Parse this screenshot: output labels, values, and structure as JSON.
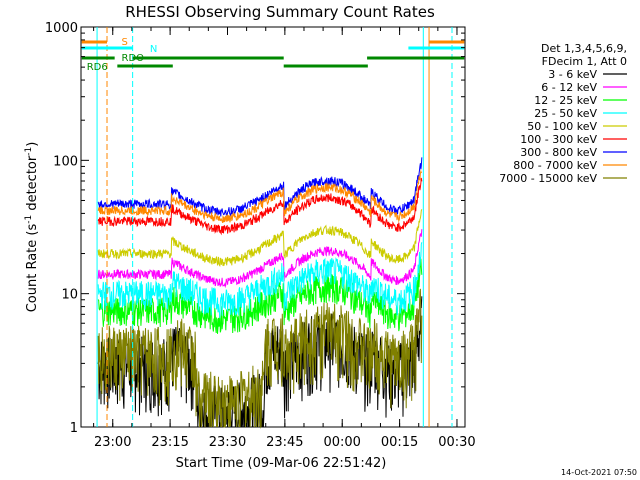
{
  "chart_data": {
    "type": "line",
    "title": "RHESSI Observing Summary Count Rates",
    "xlabel": "Start Time (09-Mar-06 22:51:42)",
    "ylabel_main": "Count Rate (s",
    "ylabel_sup1": "-1",
    "ylabel_mid": " detector",
    "ylabel_sup2": "-1",
    "ylabel_end": ")",
    "yscale": "log",
    "ylim": [
      1,
      1000
    ],
    "xlim_min": [
      0,
      58
    ],
    "x_ticks": [
      {
        "label": "23:00",
        "min": 8.3
      },
      {
        "label": "23:15",
        "min": 23.3
      },
      {
        "label": "23:30",
        "min": 38.3
      },
      {
        "label": "23:45",
        "min": 53.3
      },
      {
        "label": "00:00",
        "min": 68.3
      },
      {
        "label": "00:15",
        "min": 83.3
      },
      {
        "label": "00:30",
        "min": 98.3
      }
    ],
    "y_ticks": [
      {
        "label": "1",
        "value": 1
      },
      {
        "label": "10",
        "value": 10
      },
      {
        "label": "100",
        "value": 100
      },
      {
        "label": "1000",
        "value": 1000
      }
    ],
    "legend_header": [
      "Det 1,3,4,5,6,9,",
      "FDecim 1, Att 0"
    ],
    "series": [
      {
        "name": "3 - 6 keV",
        "color": "#000000",
        "base": 2.5
      },
      {
        "name": "6 - 12 keV",
        "color": "#ff00ff",
        "base": 14
      },
      {
        "name": "12 - 25 keV",
        "color": "#00ff00",
        "base": 7.5
      },
      {
        "name": "25 - 50 keV",
        "color": "#00ffff",
        "base": 10
      },
      {
        "name": "50 - 100 keV",
        "color": "#cccc00",
        "base": 20
      },
      {
        "name": "100 - 300 keV",
        "color": "#ff0000",
        "base": 35
      },
      {
        "name": "300 - 800 keV",
        "color": "#0000ff",
        "base": 47
      },
      {
        "name": "800 - 7000 keV",
        "color": "#ff8800",
        "base": 42
      },
      {
        "name": "7000 - 15000 keV",
        "color": "#808000",
        "base": 3
      }
    ],
    "flags": [
      {
        "label": "S",
        "color": "#ff8800"
      },
      {
        "label": "N",
        "color": "#00ffff"
      },
      {
        "label": "RDO",
        "color": "#008800"
      },
      {
        "label": "RD6",
        "color": "#008800"
      }
    ],
    "timestamp": "14-Oct-2021 07:50"
  }
}
